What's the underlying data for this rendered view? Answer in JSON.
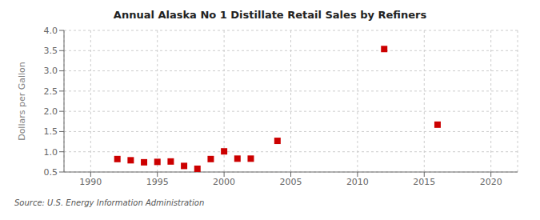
{
  "chart_data": {
    "type": "scatter",
    "title": "Annual Alaska No 1 Distillate Retail Sales by Refiners",
    "ylabel": "Dollars per Gallon",
    "annotation": "Source: U.S. Energy Information Administration",
    "color": "#cc0000",
    "marker": "square",
    "grid": true,
    "xlim": [
      1988,
      2022
    ],
    "xticks": [
      1990,
      1995,
      2000,
      2005,
      2010,
      2015,
      2020
    ],
    "ylim": [
      0.5,
      4.0
    ],
    "yticks": [
      0.5,
      {
        "value": 1.0,
        "label": "1.0"
      },
      1.5,
      {
        "value": 2.0,
        "label": "2.0"
      },
      2.5,
      {
        "value": 3.0,
        "label": "3.0"
      },
      3.5,
      {
        "value": 4.0,
        "label": "4.0"
      }
    ],
    "x": [
      1992,
      1993,
      1994,
      1995,
      1996,
      1997,
      1998,
      1999,
      2000,
      2001,
      2002,
      2004,
      2012,
      2016
    ],
    "values": [
      0.82,
      0.79,
      0.74,
      0.75,
      0.76,
      0.65,
      0.58,
      0.82,
      1.01,
      0.83,
      0.83,
      1.27,
      3.54,
      1.67
    ]
  }
}
